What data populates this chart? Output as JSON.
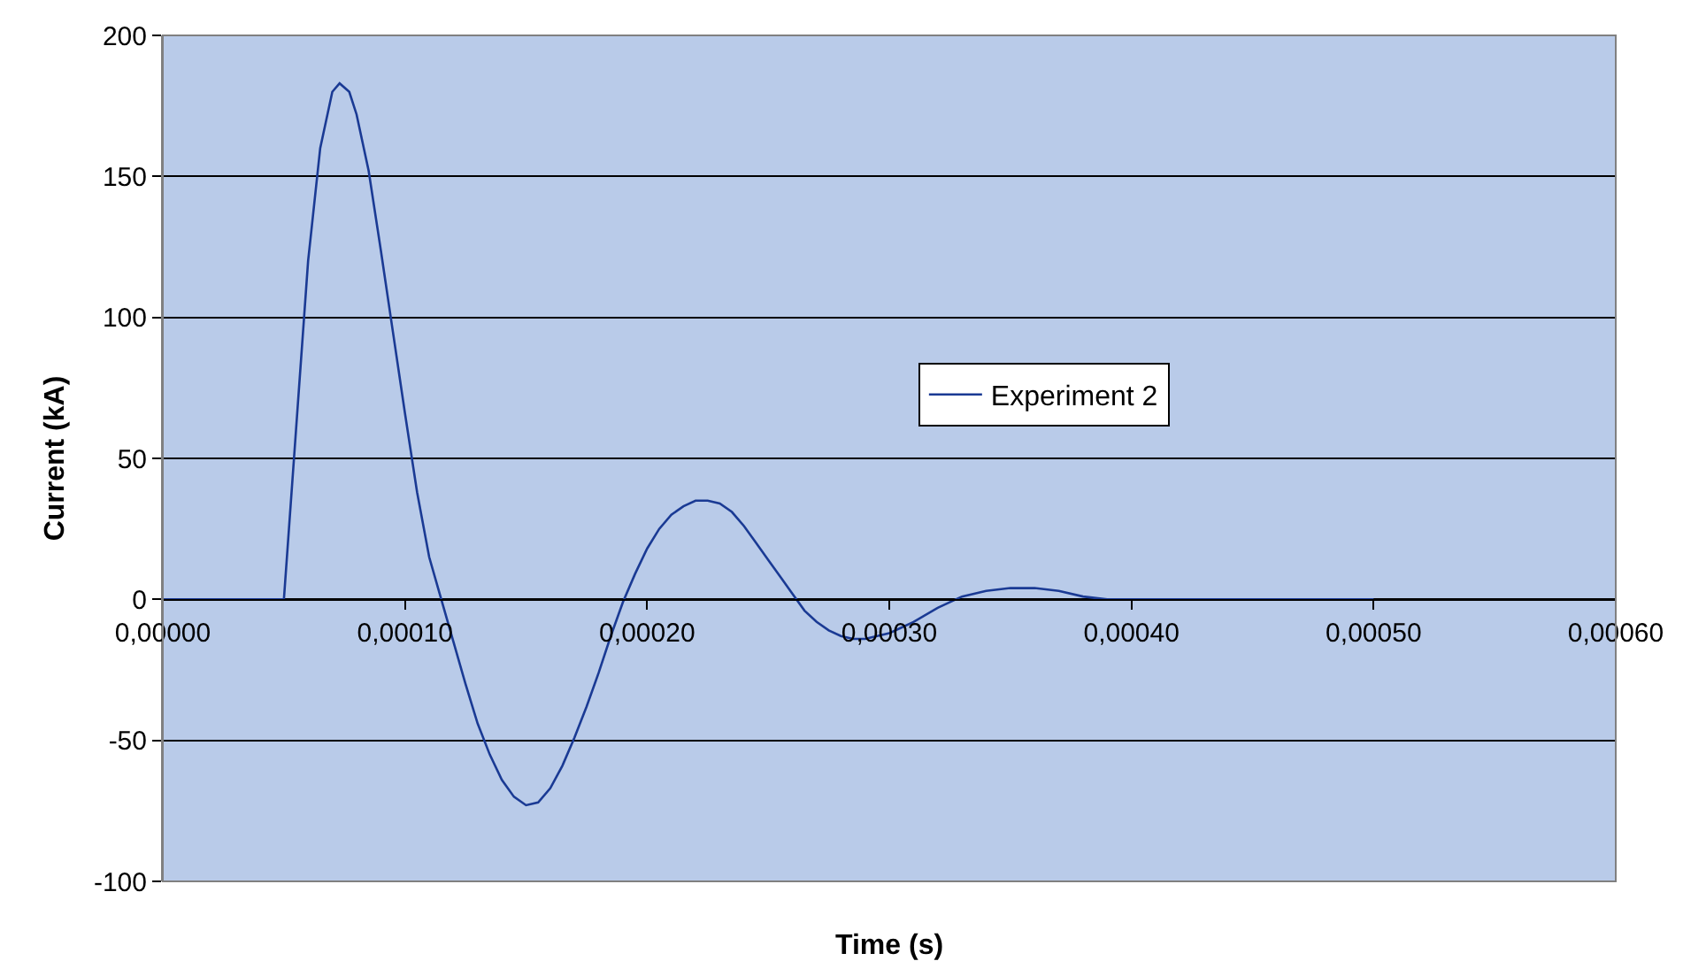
{
  "chart_data": {
    "type": "line",
    "xlabel": "Time (s)",
    "ylabel": "Current (kA)",
    "xlim": [
      0,
      0.0006
    ],
    "ylim": [
      -100,
      200
    ],
    "xticks": [
      {
        "value": 0,
        "label": "0,00000"
      },
      {
        "value": 0.0001,
        "label": "0,00010"
      },
      {
        "value": 0.0002,
        "label": "0,00020"
      },
      {
        "value": 0.0003,
        "label": "0,00030"
      },
      {
        "value": 0.0004,
        "label": "0,00040"
      },
      {
        "value": 0.0005,
        "label": "0,00050"
      },
      {
        "value": 0.0006,
        "label": "0,00060"
      }
    ],
    "yticks": [
      -100,
      -50,
      0,
      50,
      100,
      150,
      200
    ],
    "grid": "y",
    "legend": "center",
    "marker": "none",
    "line_style": "solid",
    "series": [
      {
        "name": "Experiment 2",
        "color": "#1a3a94",
        "x": [
          0,
          2e-05,
          4e-05,
          5e-05,
          5.5e-05,
          6e-05,
          6.5e-05,
          7e-05,
          7.3e-05,
          7.7e-05,
          8e-05,
          8.5e-05,
          9e-05,
          9.5e-05,
          0.0001,
          0.000105,
          0.00011,
          0.000115,
          0.00012,
          0.000125,
          0.00013,
          0.000135,
          0.00014,
          0.000145,
          0.00015,
          0.000155,
          0.00016,
          0.000165,
          0.00017,
          0.000175,
          0.00018,
          0.000185,
          0.00019,
          0.000195,
          0.0002,
          0.000205,
          0.00021,
          0.000215,
          0.00022,
          0.000225,
          0.00023,
          0.000235,
          0.00024,
          0.000245,
          0.00025,
          0.000255,
          0.00026,
          0.000265,
          0.00027,
          0.000275,
          0.00028,
          0.000285,
          0.00029,
          0.000295,
          0.0003,
          0.00031,
          0.00032,
          0.00033,
          0.00034,
          0.00035,
          0.00036,
          0.00037,
          0.00038,
          0.00039,
          0.0004,
          0.00045,
          0.0005
        ],
        "values": [
          0,
          0,
          0,
          0,
          60,
          120,
          160,
          180,
          183,
          180,
          172,
          152,
          124,
          95,
          66,
          38,
          15,
          0,
          -15,
          -30,
          -44,
          -55,
          -64,
          -70,
          -73,
          -72,
          -67,
          -59,
          -49,
          -38,
          -26,
          -13,
          -1,
          9,
          18,
          25,
          30,
          33,
          35,
          35,
          34,
          31,
          26,
          20,
          14,
          8,
          2,
          -4,
          -8,
          -11,
          -13,
          -14,
          -14,
          -13,
          -12,
          -8,
          -3,
          1,
          3,
          4,
          4,
          3,
          1,
          0,
          0,
          0,
          0
        ]
      }
    ]
  }
}
